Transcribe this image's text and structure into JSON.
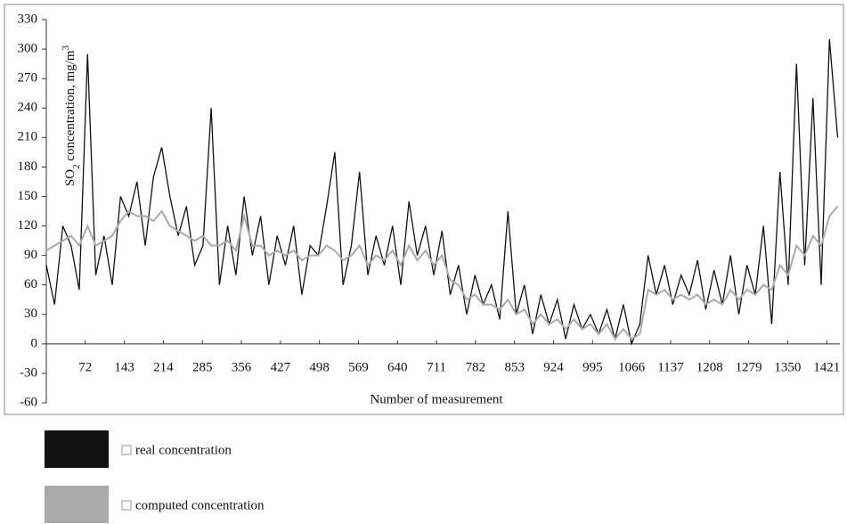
{
  "chart_data": {
    "type": "line",
    "y_label_parts": [
      "SO",
      "2",
      " concentration, mg/m",
      "3"
    ],
    "x_label": "Number of measurement",
    "x": [
      1,
      16,
      31,
      46,
      61,
      76,
      91,
      106,
      121,
      136,
      151,
      166,
      181,
      196,
      211,
      226,
      241,
      256,
      271,
      286,
      301,
      316,
      331,
      346,
      361,
      376,
      391,
      406,
      421,
      436,
      451,
      466,
      481,
      496,
      511,
      526,
      541,
      556,
      571,
      586,
      601,
      616,
      631,
      646,
      661,
      676,
      691,
      706,
      721,
      736,
      751,
      766,
      781,
      796,
      811,
      826,
      841,
      856,
      871,
      886,
      901,
      916,
      931,
      946,
      961,
      976,
      991,
      1006,
      1021,
      1036,
      1051,
      1066,
      1081,
      1096,
      1111,
      1126,
      1141,
      1156,
      1171,
      1186,
      1201,
      1216,
      1231,
      1246,
      1261,
      1276,
      1291,
      1306,
      1321,
      1336,
      1351,
      1366,
      1381,
      1396,
      1411,
      1426,
      1441
    ],
    "series": [
      {
        "name": "real concentration",
        "color": "#111111",
        "values": [
          80,
          40,
          120,
          100,
          55,
          295,
          70,
          110,
          60,
          150,
          130,
          165,
          100,
          170,
          200,
          150,
          110,
          140,
          80,
          100,
          240,
          60,
          120,
          70,
          150,
          90,
          130,
          60,
          110,
          80,
          120,
          50,
          100,
          90,
          140,
          195,
          60,
          100,
          175,
          70,
          110,
          80,
          120,
          60,
          145,
          90,
          120,
          70,
          115,
          50,
          80,
          30,
          70,
          40,
          60,
          25,
          135,
          30,
          60,
          10,
          50,
          20,
          45,
          5,
          40,
          15,
          30,
          10,
          35,
          5,
          40,
          0,
          20,
          90,
          50,
          80,
          40,
          70,
          50,
          85,
          35,
          75,
          40,
          90,
          30,
          80,
          50,
          120,
          20,
          175,
          60,
          285,
          80,
          250,
          60,
          310,
          210
        ]
      },
      {
        "name": "computed concentration",
        "color": "#aaaaaa",
        "values": [
          95,
          100,
          105,
          110,
          100,
          120,
          100,
          105,
          110,
          125,
          135,
          130,
          130,
          125,
          135,
          120,
          115,
          110,
          105,
          110,
          100,
          100,
          105,
          95,
          130,
          100,
          100,
          90,
          95,
          90,
          95,
          85,
          90,
          90,
          100,
          95,
          85,
          90,
          100,
          80,
          90,
          85,
          95,
          80,
          100,
          85,
          95,
          80,
          90,
          65,
          60,
          45,
          50,
          40,
          40,
          35,
          45,
          30,
          35,
          20,
          30,
          20,
          25,
          15,
          25,
          15,
          20,
          10,
          20,
          5,
          15,
          5,
          10,
          55,
          50,
          55,
          45,
          50,
          45,
          50,
          40,
          45,
          40,
          55,
          45,
          55,
          50,
          60,
          55,
          80,
          70,
          100,
          90,
          110,
          100,
          130,
          140
        ]
      }
    ],
    "xlim": [
      1,
      1445
    ],
    "xticks": [
      72,
      143,
      214,
      285,
      356,
      427,
      498,
      569,
      640,
      711,
      782,
      853,
      924,
      995,
      1066,
      1137,
      1208,
      1279,
      1350,
      1421
    ],
    "ylim": [
      -60,
      330
    ],
    "yticks": [
      -60,
      -30,
      0,
      30,
      60,
      90,
      120,
      150,
      180,
      210,
      240,
      270,
      300,
      330
    ]
  }
}
